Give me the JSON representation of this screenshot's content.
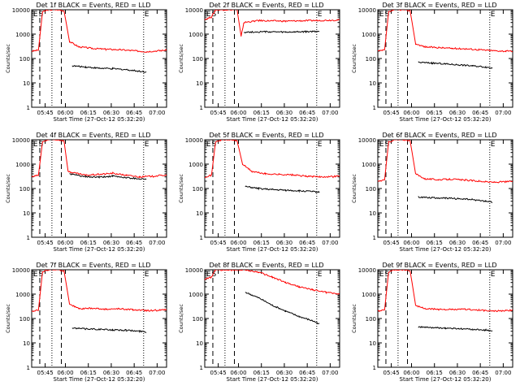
{
  "colors": {
    "events": "#000000",
    "lld": "#ff0000",
    "axes": "#000000"
  },
  "chart_data": [
    {
      "type": "line",
      "title": "Det 1f BLACK = Events, RED = LLD",
      "xlabel": "Start Time (27-Oct-12 05:32:20)",
      "ylabel": "Counts/sec",
      "x_ticks": [
        "05:45",
        "06:00",
        "06:15",
        "06:30",
        "06:45",
        "07:00"
      ],
      "y_ticks": [
        "1",
        "10",
        "100",
        "1000",
        "10000"
      ],
      "ylim": [
        1,
        10000
      ],
      "y_scale": "log",
      "markers": [
        "E",
        "S",
        "E"
      ],
      "series": [
        {
          "name": "RED",
          "color": "red",
          "points": [
            [
              0,
              200
            ],
            [
              0.05,
              220
            ],
            [
              0.08,
              8000
            ],
            [
              0.12,
              10000
            ],
            [
              0.2,
              10000
            ],
            [
              0.24,
              9000
            ],
            [
              0.28,
              500
            ],
            [
              0.35,
              300
            ],
            [
              0.45,
              260
            ],
            [
              0.55,
              240
            ],
            [
              0.65,
              230
            ],
            [
              0.75,
              210
            ],
            [
              0.85,
              190
            ],
            [
              0.95,
              210
            ],
            [
              1,
              220
            ]
          ]
        },
        {
          "name": "BLACK",
          "color": "black",
          "points": [
            [
              0.3,
              50
            ],
            [
              0.4,
              45
            ],
            [
              0.5,
              40
            ],
            [
              0.6,
              38
            ],
            [
              0.7,
              35
            ],
            [
              0.8,
              30
            ],
            [
              0.85,
              28
            ]
          ]
        }
      ]
    },
    {
      "type": "line",
      "title": "Det 2f BLACK = Events, RED = LLD",
      "xlabel": "Start Time (27-Oct-12 05:32:20)",
      "ylabel": "Counts/sec",
      "x_ticks": [
        "05:45",
        "06:00",
        "06:15",
        "06:30",
        "06:45",
        "07:00"
      ],
      "y_ticks": [
        "1",
        "10",
        "100",
        "1000",
        "10000"
      ],
      "ylim": [
        1,
        10000
      ],
      "y_scale": "log",
      "markers": [
        "E",
        "S",
        "E"
      ],
      "series": [
        {
          "name": "RED",
          "color": "red",
          "points": [
            [
              0,
              4000
            ],
            [
              0.05,
              5000
            ],
            [
              0.08,
              10000
            ],
            [
              0.12,
              10000
            ],
            [
              0.2,
              10000
            ],
            [
              0.24,
              10000
            ],
            [
              0.27,
              800
            ],
            [
              0.29,
              3000
            ],
            [
              0.4,
              3600
            ],
            [
              0.6,
              3400
            ],
            [
              0.8,
              3600
            ],
            [
              1,
              3800
            ]
          ]
        },
        {
          "name": "BLACK",
          "color": "black",
          "points": [
            [
              0.29,
              1200
            ],
            [
              0.45,
              1250
            ],
            [
              0.6,
              1200
            ],
            [
              0.75,
              1250
            ],
            [
              0.85,
              1300
            ]
          ]
        }
      ]
    },
    {
      "type": "line",
      "title": "Det 3f BLACK = Events, RED = LLD",
      "xlabel": "Start Time (27-Oct-12 05:32:20)",
      "ylabel": "Counts/sec",
      "x_ticks": [
        "05:45",
        "06:00",
        "06:15",
        "06:30",
        "06:45",
        "07:00"
      ],
      "y_ticks": [
        "1",
        "10",
        "100",
        "1000",
        "10000"
      ],
      "ylim": [
        1,
        10000
      ],
      "y_scale": "log",
      "markers": [
        "E",
        "S",
        "E"
      ],
      "series": [
        {
          "name": "RED",
          "color": "red",
          "points": [
            [
              0,
              200
            ],
            [
              0.05,
              220
            ],
            [
              0.08,
              8000
            ],
            [
              0.12,
              10000
            ],
            [
              0.2,
              10000
            ],
            [
              0.24,
              9000
            ],
            [
              0.28,
              400
            ],
            [
              0.35,
              300
            ],
            [
              0.45,
              280
            ],
            [
              0.55,
              260
            ],
            [
              0.65,
              250
            ],
            [
              0.75,
              230
            ],
            [
              0.85,
              210
            ],
            [
              0.95,
              200
            ],
            [
              1,
              200
            ]
          ]
        },
        {
          "name": "BLACK",
          "color": "black",
          "points": [
            [
              0.3,
              70
            ],
            [
              0.4,
              65
            ],
            [
              0.5,
              60
            ],
            [
              0.6,
              55
            ],
            [
              0.7,
              50
            ],
            [
              0.8,
              45
            ],
            [
              0.85,
              40
            ]
          ]
        }
      ]
    },
    {
      "type": "line",
      "title": "Det 4f BLACK = Events, RED = LLD",
      "xlabel": "Start Time (27-Oct-12 05:32:20)",
      "ylabel": "Counts/sec",
      "x_ticks": [
        "05:45",
        "06:00",
        "06:15",
        "06:30",
        "06:45",
        "07:00"
      ],
      "y_ticks": [
        "1",
        "10",
        "100",
        "1000",
        "10000"
      ],
      "ylim": [
        1,
        10000
      ],
      "y_scale": "log",
      "markers": [
        "E",
        "S",
        "E"
      ],
      "series": [
        {
          "name": "RED",
          "color": "red",
          "points": [
            [
              0,
              300
            ],
            [
              0.05,
              350
            ],
            [
              0.08,
              8000
            ],
            [
              0.12,
              10000
            ],
            [
              0.2,
              10000
            ],
            [
              0.24,
              9000
            ],
            [
              0.27,
              500
            ],
            [
              0.3,
              450
            ],
            [
              0.4,
              350
            ],
            [
              0.5,
              380
            ],
            [
              0.6,
              420
            ],
            [
              0.7,
              350
            ],
            [
              0.8,
              300
            ],
            [
              0.9,
              320
            ],
            [
              1,
              360
            ]
          ]
        },
        {
          "name": "BLACK",
          "color": "black",
          "points": [
            [
              0.28,
              400
            ],
            [
              0.4,
              300
            ],
            [
              0.5,
              290
            ],
            [
              0.6,
              320
            ],
            [
              0.7,
              280
            ],
            [
              0.8,
              250
            ],
            [
              0.85,
              240
            ]
          ]
        }
      ]
    },
    {
      "type": "line",
      "title": "Det 5f BLACK = Events, RED = LLD",
      "xlabel": "Start Time (27-Oct-12 05:32:20)",
      "ylabel": "Counts/sec",
      "x_ticks": [
        "05:45",
        "06:00",
        "06:15",
        "06:30",
        "06:45",
        "07:00"
      ],
      "y_ticks": [
        "1",
        "10",
        "100",
        "1000",
        "10000"
      ],
      "ylim": [
        1,
        10000
      ],
      "y_scale": "log",
      "markers": [
        "E",
        "S",
        "E"
      ],
      "series": [
        {
          "name": "RED",
          "color": "red",
          "points": [
            [
              0,
              300
            ],
            [
              0.05,
              350
            ],
            [
              0.08,
              8000
            ],
            [
              0.12,
              10000
            ],
            [
              0.2,
              10000
            ],
            [
              0.24,
              9000
            ],
            [
              0.28,
              1000
            ],
            [
              0.35,
              500
            ],
            [
              0.45,
              400
            ],
            [
              0.55,
              380
            ],
            [
              0.65,
              360
            ],
            [
              0.75,
              320
            ],
            [
              0.85,
              300
            ],
            [
              0.95,
              310
            ],
            [
              1,
              330
            ]
          ]
        },
        {
          "name": "BLACK",
          "color": "black",
          "points": [
            [
              0.3,
              120
            ],
            [
              0.4,
              100
            ],
            [
              0.5,
              90
            ],
            [
              0.6,
              85
            ],
            [
              0.7,
              80
            ],
            [
              0.8,
              75
            ],
            [
              0.85,
              70
            ]
          ]
        }
      ]
    },
    {
      "type": "line",
      "title": "Det 6f BLACK = Events, RED = LLD",
      "xlabel": "Start Time (27-Oct-12 05:32:20)",
      "ylabel": "Counts/sec",
      "x_ticks": [
        "05:45",
        "06:00",
        "06:15",
        "06:30",
        "06:45",
        "07:00"
      ],
      "y_ticks": [
        "1",
        "10",
        "100",
        "1000",
        "10000"
      ],
      "ylim": [
        1,
        10000
      ],
      "y_scale": "log",
      "markers": [
        "E",
        "S",
        "E"
      ],
      "series": [
        {
          "name": "RED",
          "color": "red",
          "points": [
            [
              0,
              200
            ],
            [
              0.05,
              220
            ],
            [
              0.08,
              8000
            ],
            [
              0.12,
              10000
            ],
            [
              0.2,
              10000
            ],
            [
              0.24,
              9000
            ],
            [
              0.28,
              400
            ],
            [
              0.35,
              250
            ],
            [
              0.45,
              230
            ],
            [
              0.55,
              240
            ],
            [
              0.65,
              220
            ],
            [
              0.75,
              200
            ],
            [
              0.85,
              180
            ],
            [
              0.95,
              190
            ],
            [
              1,
              200
            ]
          ]
        },
        {
          "name": "BLACK",
          "color": "black",
          "points": [
            [
              0.3,
              45
            ],
            [
              0.4,
              42
            ],
            [
              0.5,
              40
            ],
            [
              0.6,
              38
            ],
            [
              0.7,
              35
            ],
            [
              0.8,
              30
            ],
            [
              0.85,
              28
            ]
          ]
        }
      ]
    },
    {
      "type": "line",
      "title": "Det 7f BLACK = Events, RED = LLD",
      "xlabel": "Start Time (27-Oct-12 05:32:20)",
      "ylabel": "Counts/sec",
      "x_ticks": [
        "05:45",
        "06:00",
        "06:15",
        "06:30",
        "06:45",
        "07:00"
      ],
      "y_ticks": [
        "1",
        "10",
        "100",
        "1000",
        "10000"
      ],
      "ylim": [
        1,
        10000
      ],
      "y_scale": "log",
      "markers": [
        "E",
        "S",
        "E"
      ],
      "series": [
        {
          "name": "RED",
          "color": "red",
          "points": [
            [
              0,
              200
            ],
            [
              0.05,
              220
            ],
            [
              0.08,
              8000
            ],
            [
              0.12,
              10000
            ],
            [
              0.2,
              10000
            ],
            [
              0.24,
              9000
            ],
            [
              0.28,
              400
            ],
            [
              0.35,
              250
            ],
            [
              0.45,
              260
            ],
            [
              0.55,
              240
            ],
            [
              0.65,
              250
            ],
            [
              0.75,
              230
            ],
            [
              0.85,
              210
            ],
            [
              0.95,
              220
            ],
            [
              1,
              230
            ]
          ]
        },
        {
          "name": "BLACK",
          "color": "black",
          "points": [
            [
              0.3,
              40
            ],
            [
              0.4,
              38
            ],
            [
              0.5,
              36
            ],
            [
              0.6,
              34
            ],
            [
              0.7,
              33
            ],
            [
              0.8,
              30
            ],
            [
              0.85,
              28
            ]
          ]
        }
      ]
    },
    {
      "type": "line",
      "title": "Det 8f BLACK = Events, RED = LLD",
      "xlabel": "Start Time (27-Oct-12 05:32:20)",
      "ylabel": "Counts/sec",
      "x_ticks": [
        "05:45",
        "06:00",
        "06:15",
        "06:30",
        "06:45",
        "07:00"
      ],
      "y_ticks": [
        "1",
        "10",
        "100",
        "1000",
        "10000"
      ],
      "ylim": [
        1,
        10000
      ],
      "y_scale": "log",
      "markers": [
        "E",
        "S",
        "E"
      ],
      "series": [
        {
          "name": "RED",
          "color": "red",
          "points": [
            [
              0,
              4000
            ],
            [
              0.05,
              5000
            ],
            [
              0.08,
              10000
            ],
            [
              0.12,
              10000
            ],
            [
              0.2,
              10000
            ],
            [
              0.24,
              10000
            ],
            [
              0.29,
              10000
            ],
            [
              0.4,
              8000
            ],
            [
              0.5,
              5000
            ],
            [
              0.6,
              3000
            ],
            [
              0.7,
              2000
            ],
            [
              0.8,
              1500
            ],
            [
              0.9,
              1200
            ],
            [
              1,
              1000
            ]
          ]
        },
        {
          "name": "BLACK",
          "color": "black",
          "points": [
            [
              0.3,
              1200
            ],
            [
              0.4,
              700
            ],
            [
              0.5,
              350
            ],
            [
              0.6,
              200
            ],
            [
              0.7,
              120
            ],
            [
              0.8,
              80
            ],
            [
              0.85,
              60
            ]
          ]
        }
      ]
    },
    {
      "type": "line",
      "title": "Det 9f BLACK = Events, RED = LLD",
      "xlabel": "Start Time (27-Oct-12 05:32:20)",
      "ylabel": "Counts/sec",
      "x_ticks": [
        "05:45",
        "06:00",
        "06:15",
        "06:30",
        "06:45",
        "07:00"
      ],
      "y_ticks": [
        "1",
        "10",
        "100",
        "1000",
        "10000"
      ],
      "ylim": [
        1,
        10000
      ],
      "y_scale": "log",
      "markers": [
        "E",
        "S",
        "E"
      ],
      "series": [
        {
          "name": "RED",
          "color": "red",
          "points": [
            [
              0,
              200
            ],
            [
              0.05,
              220
            ],
            [
              0.08,
              8000
            ],
            [
              0.12,
              10000
            ],
            [
              0.2,
              10000
            ],
            [
              0.24,
              9000
            ],
            [
              0.28,
              350
            ],
            [
              0.35,
              250
            ],
            [
              0.45,
              240
            ],
            [
              0.55,
              230
            ],
            [
              0.65,
              240
            ],
            [
              0.75,
              220
            ],
            [
              0.85,
              200
            ],
            [
              0.95,
              210
            ],
            [
              1,
              220
            ]
          ]
        },
        {
          "name": "BLACK",
          "color": "black",
          "points": [
            [
              0.3,
              45
            ],
            [
              0.4,
              42
            ],
            [
              0.5,
              40
            ],
            [
              0.6,
              38
            ],
            [
              0.7,
              36
            ],
            [
              0.8,
              33
            ],
            [
              0.85,
              30
            ]
          ]
        }
      ]
    }
  ]
}
